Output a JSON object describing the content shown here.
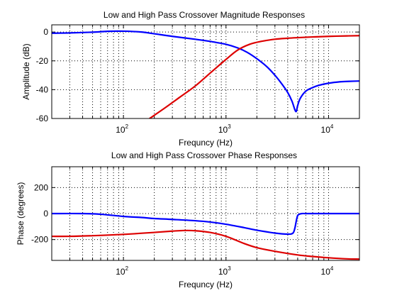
{
  "chart_data": [
    {
      "type": "line",
      "title": "Low and High Pass Crossover Magnitude Responses",
      "xlabel": "Frequncy (Hz)",
      "ylabel": "Amplitude (dB)",
      "xscale": "log",
      "xlim": [
        20,
        20000
      ],
      "ylim": [
        -60,
        5
      ],
      "xticks": [
        100,
        1000,
        10000
      ],
      "xticklabels": [
        {
          "base": "10",
          "exp": "2"
        },
        {
          "base": "10",
          "exp": "3"
        },
        {
          "base": "10",
          "exp": "4"
        }
      ],
      "yticks": [
        0,
        -20,
        -40,
        -60
      ],
      "yticklabels": [
        "0",
        "-20",
        "-40",
        "-60"
      ],
      "grid": true,
      "series": [
        {
          "color": "#0000ff",
          "x": [
            20,
            30,
            50,
            70,
            100,
            150,
            200,
            300,
            500,
            700,
            1000,
            1300,
            1600,
            2000,
            2500,
            3000,
            3500,
            4000,
            4400,
            4700,
            4850,
            5000,
            5300,
            6000,
            7000,
            8000,
            10000,
            13000,
            16000,
            20000
          ],
          "y": [
            -0.8,
            -0.6,
            -0.1,
            0.5,
            0.6,
            0,
            -1.2,
            -3,
            -5,
            -6.5,
            -8.5,
            -11,
            -14,
            -18.5,
            -24,
            -30,
            -36,
            -42,
            -48,
            -54,
            -55,
            -51,
            -46,
            -41,
            -38.5,
            -37,
            -35.5,
            -34.5,
            -34.2,
            -34
          ]
        },
        {
          "color": "#dd0000",
          "x": [
            180,
            250,
            350,
            500,
            700,
            1000,
            1300,
            1700,
            2200,
            3000,
            4000,
            5000,
            7000,
            10000,
            15000,
            20000
          ],
          "y": [
            -60,
            -53,
            -45.5,
            -37.5,
            -28.5,
            -19,
            -12.5,
            -8.5,
            -6.5,
            -5,
            -4.3,
            -3.9,
            -3.4,
            -3,
            -2.7,
            -2.5
          ]
        }
      ]
    },
    {
      "type": "line",
      "title": "Low and High Pass Crossover Phase Responses",
      "xlabel": "Frequncy (Hz)",
      "ylabel": "Phase (degrees)",
      "xscale": "log",
      "xlim": [
        20,
        20000
      ],
      "ylim": [
        -360,
        360
      ],
      "xticks": [
        100,
        1000,
        10000
      ],
      "xticklabels": [
        {
          "base": "10",
          "exp": "2"
        },
        {
          "base": "10",
          "exp": "3"
        },
        {
          "base": "10",
          "exp": "4"
        }
      ],
      "yticks": [
        200,
        0,
        -200
      ],
      "yticklabels": [
        "200",
        "0",
        "-200"
      ],
      "grid": true,
      "series": [
        {
          "color": "#0000ff",
          "x": [
            20,
            40,
            60,
            100,
            150,
            200,
            300,
            500,
            700,
            1000,
            1500,
            2000,
            3000,
            4000,
            4500,
            4700,
            4850,
            5000,
            5200,
            5500,
            6000,
            8000,
            10000,
            20000
          ],
          "y": [
            0,
            0,
            -5,
            -22,
            -30,
            -38,
            -45,
            -55,
            -65,
            -82,
            -108,
            -128,
            -150,
            -158,
            -150,
            -110,
            -55,
            -15,
            -5,
            0,
            0,
            0,
            0,
            0
          ]
        },
        {
          "color": "#dd0000",
          "x": [
            20,
            30,
            50,
            100,
            200,
            300,
            400,
            500,
            700,
            1000,
            1500,
            2000,
            3000,
            5000,
            7000,
            10000,
            15000,
            20000
          ],
          "y": [
            -175,
            -175,
            -170,
            -160,
            -145,
            -135,
            -130,
            -132,
            -145,
            -175,
            -230,
            -262,
            -290,
            -318,
            -330,
            -340,
            -348,
            -350
          ]
        }
      ]
    }
  ]
}
